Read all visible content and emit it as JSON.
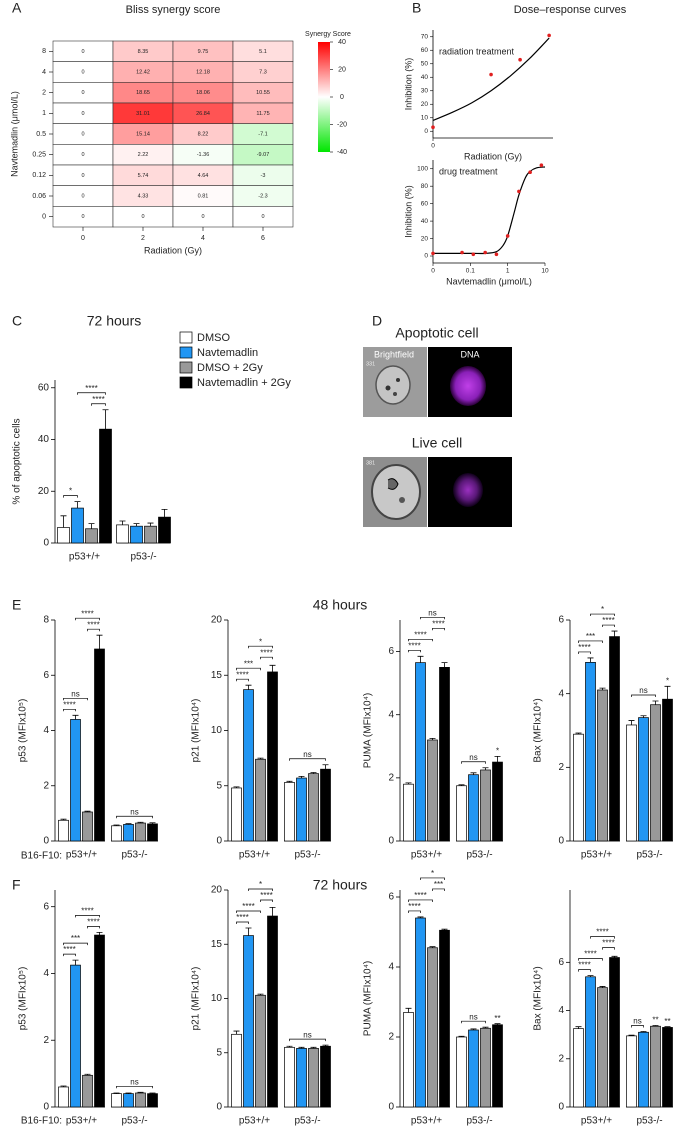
{
  "panel_labels": [
    "A",
    "B",
    "C",
    "D",
    "E",
    "F"
  ],
  "panel_titles": {
    "B": "Dose–response curves"
  },
  "panel_D": {
    "apoptotic_title": "Apoptotic cell",
    "live_title": "Live cell",
    "channels": [
      "Brightfield",
      "DNA"
    ],
    "image_ids": [
      "331",
      "381"
    ]
  },
  "sections": {
    "E": "48 hours",
    "F": "72 hours"
  },
  "strain_label": "B16-F10:",
  "chart_data": [
    {
      "type": "heatmap",
      "title": "Bliss synergy score",
      "xlabel": "Radiation (Gy)",
      "ylabel": "Navtemadlin (μmol/L)",
      "x_categories": [
        0,
        2,
        4,
        6
      ],
      "y_categories": [
        8,
        4,
        2,
        1,
        0.5,
        0.25,
        0.12,
        0.06,
        0
      ],
      "z": [
        [
          0,
          8.35,
          9.75,
          5.1
        ],
        [
          0,
          12.42,
          12.18,
          7.3
        ],
        [
          0,
          18.65,
          18.06,
          10.55
        ],
        [
          0,
          31.01,
          26.84,
          11.75
        ],
        [
          0,
          15.14,
          8.22,
          -7.1
        ],
        [
          0,
          2.22,
          -1.36,
          -9.07
        ],
        [
          0,
          5.74,
          4.64,
          -3
        ],
        [
          0,
          4.33,
          0.81,
          -2.3
        ],
        [
          0,
          0,
          0,
          0
        ]
      ],
      "colorbar_label": "Synergy Score",
      "zlim": [
        -40,
        40
      ],
      "zticks": [
        40,
        20,
        0,
        -20,
        -40
      ],
      "colormap": [
        "#00e600",
        "#ffffff",
        "#ff0000"
      ]
    },
    {
      "type": "scatter",
      "label": "radiation treatment",
      "xlabel": "Radiation (Gy)",
      "ylabel": "Inhibition (%)",
      "xscale": "linear",
      "x": [
        0,
        3,
        4.5,
        6
      ],
      "values": [
        3,
        42,
        53,
        71
      ],
      "color": "#e02020",
      "fit": {
        "x": [
          0,
          1,
          2,
          3,
          4,
          5,
          6
        ],
        "values": [
          8,
          14,
          21,
          30,
          41,
          54,
          69
        ],
        "color": "#000000"
      },
      "xlim": [
        0,
        6.2
      ],
      "xticks": [
        0
      ],
      "ylim": [
        -5,
        75
      ],
      "yticks": [
        0,
        10,
        20,
        30,
        40,
        50,
        60,
        70
      ]
    },
    {
      "type": "scatter",
      "label": "drug treatment",
      "xlabel": "Navtemadlin (μmol/L)",
      "ylabel": "Inhibition (%)",
      "xscale": "log",
      "x": [
        0,
        0.06,
        0.12,
        0.25,
        0.5,
        1,
        2,
        4,
        8
      ],
      "values": [
        3,
        4,
        2,
        4,
        2,
        23,
        74,
        96,
        104
      ],
      "color": "#e02020",
      "fit": {
        "x": [
          0,
          0.06,
          0.12,
          0.25,
          0.5,
          0.75,
          1,
          1.5,
          2,
          3,
          4,
          6,
          10
        ],
        "values": [
          3,
          3,
          3,
          3,
          5,
          12,
          23,
          50,
          70,
          90,
          97,
          101,
          102
        ],
        "color": "#000000"
      },
      "xlim": [
        0,
        10
      ],
      "xticks": [
        0,
        0.1,
        1,
        10
      ],
      "ylim": [
        -8,
        110
      ],
      "yticks": [
        0,
        20,
        40,
        60,
        80,
        100
      ]
    },
    {
      "type": "bar",
      "title": "72 hours",
      "ylabel": "% of apoptotic cells",
      "categories": [
        "p53+/+",
        "p53-/-"
      ],
      "ylim": [
        0,
        63
      ],
      "yticks": [
        0,
        20,
        40,
        60
      ],
      "series": [
        {
          "name": "DMSO",
          "color": "#ffffff",
          "values": [
            6,
            7
          ],
          "errors": [
            4.5,
            1.5
          ]
        },
        {
          "name": "Navtemadlin",
          "color": "#2196f3",
          "values": [
            13.5,
            6.5
          ],
          "errors": [
            2.5,
            1
          ]
        },
        {
          "name": "DMSO + 2Gy",
          "color": "#999999",
          "values": [
            5.5,
            6.5
          ],
          "errors": [
            2,
            1.2
          ]
        },
        {
          "name": "Navtemadlin + 2Gy",
          "color": "#000000",
          "values": [
            44,
            10
          ],
          "errors": [
            7.5,
            3
          ]
        }
      ],
      "annotations": [
        {
          "label": "*",
          "group": 0,
          "series": [
            0,
            1
          ]
        },
        {
          "label": "****",
          "group": 0,
          "series": [
            2,
            3
          ]
        },
        {
          "label": "****",
          "group": 0,
          "series": [
            1,
            3
          ]
        }
      ]
    },
    {
      "type": "bar",
      "ylabel": "p53 (MFIx10⁵)",
      "categories": [
        "p53+/+",
        "p53-/-"
      ],
      "ylim": [
        0,
        8
      ],
      "yticks": [
        0,
        2,
        4,
        6,
        8
      ],
      "series": [
        {
          "color": "#ffffff",
          "values": [
            0.75,
            0.55
          ],
          "errors": [
            0.04,
            0.03
          ]
        },
        {
          "color": "#2196f3",
          "values": [
            4.4,
            0.6
          ],
          "errors": [
            0.15,
            0.03
          ]
        },
        {
          "color": "#999999",
          "values": [
            1.05,
            0.65
          ],
          "errors": [
            0.03,
            0.03
          ]
        },
        {
          "color": "#000000",
          "values": [
            6.95,
            0.62
          ],
          "errors": [
            0.5,
            0.04
          ]
        }
      ],
      "annotations": [
        {
          "label": "****",
          "group": 0,
          "series": [
            0,
            1
          ]
        },
        {
          "label": "ns",
          "group": 0,
          "series": [
            0,
            2
          ]
        },
        {
          "label": "****",
          "group": 0,
          "series": [
            2,
            3
          ]
        },
        {
          "label": "****",
          "group": 0,
          "series": [
            1,
            3
          ]
        },
        {
          "label": "ns",
          "group": 1,
          "series": [
            0,
            3
          ]
        }
      ]
    },
    {
      "type": "bar",
      "ylabel": "p21 (MFIx10⁴)",
      "categories": [
        "p53+/+",
        "p53-/-"
      ],
      "ylim": [
        0,
        20
      ],
      "yticks": [
        0,
        5,
        10,
        15,
        20
      ],
      "series": [
        {
          "color": "#ffffff",
          "values": [
            4.8,
            5.3
          ],
          "errors": [
            0.1,
            0.1
          ]
        },
        {
          "color": "#2196f3",
          "values": [
            13.7,
            5.7
          ],
          "errors": [
            0.4,
            0.15
          ]
        },
        {
          "color": "#999999",
          "values": [
            7.4,
            6.1
          ],
          "errors": [
            0.1,
            0.1
          ]
        },
        {
          "color": "#000000",
          "values": [
            15.3,
            6.5
          ],
          "errors": [
            0.6,
            0.4
          ]
        }
      ],
      "annotations": [
        {
          "label": "****",
          "group": 0,
          "series": [
            0,
            1
          ]
        },
        {
          "label": "***",
          "group": 0,
          "series": [
            0,
            2
          ]
        },
        {
          "label": "****",
          "group": 0,
          "series": [
            2,
            3
          ]
        },
        {
          "label": "*",
          "group": 0,
          "series": [
            1,
            3
          ]
        },
        {
          "label": "ns",
          "group": 1,
          "series": [
            0,
            3
          ]
        }
      ]
    },
    {
      "type": "bar",
      "ylabel": "PUMA (MFIx10⁴)",
      "categories": [
        "p53+/+",
        "p53-/-"
      ],
      "ylim": [
        0,
        7
      ],
      "yticks": [
        0,
        2,
        4,
        6
      ],
      "series": [
        {
          "color": "#ffffff",
          "values": [
            1.8,
            1.75
          ],
          "errors": [
            0.04,
            0.03
          ]
        },
        {
          "color": "#2196f3",
          "values": [
            5.65,
            2.1
          ],
          "errors": [
            0.2,
            0.06
          ]
        },
        {
          "color": "#999999",
          "values": [
            3.2,
            2.25
          ],
          "errors": [
            0.05,
            0.07
          ]
        },
        {
          "color": "#000000",
          "values": [
            5.5,
            2.5
          ],
          "errors": [
            0.15,
            0.18
          ]
        }
      ],
      "annotations": [
        {
          "label": "****",
          "group": 0,
          "series": [
            0,
            1
          ]
        },
        {
          "label": "****",
          "group": 0,
          "series": [
            0,
            2
          ]
        },
        {
          "label": "****",
          "group": 0,
          "series": [
            2,
            3
          ]
        },
        {
          "label": "ns",
          "group": 0,
          "series": [
            1,
            3
          ]
        },
        {
          "label": "ns",
          "group": 1,
          "series": [
            0,
            2
          ]
        },
        {
          "label": "*",
          "group": 1,
          "series": [
            3,
            3
          ]
        }
      ]
    },
    {
      "type": "bar",
      "ylabel": "Bax (MFIx10⁴)",
      "categories": [
        "p53+/+",
        "p53-/-"
      ],
      "ylim": [
        0,
        6
      ],
      "yticks": [
        0,
        2,
        4,
        6
      ],
      "series": [
        {
          "color": "#ffffff",
          "values": [
            2.9,
            3.15
          ],
          "errors": [
            0.03,
            0.12
          ]
        },
        {
          "color": "#2196f3",
          "values": [
            4.85,
            3.35
          ],
          "errors": [
            0.12,
            0.05
          ]
        },
        {
          "color": "#999999",
          "values": [
            4.1,
            3.7
          ],
          "errors": [
            0.05,
            0.1
          ]
        },
        {
          "color": "#000000",
          "values": [
            5.55,
            3.85
          ],
          "errors": [
            0.15,
            0.35
          ]
        }
      ],
      "annotations": [
        {
          "label": "****",
          "group": 0,
          "series": [
            0,
            1
          ]
        },
        {
          "label": "***",
          "group": 0,
          "series": [
            0,
            2
          ]
        },
        {
          "label": "****",
          "group": 0,
          "series": [
            2,
            3
          ]
        },
        {
          "label": "*",
          "group": 0,
          "series": [
            1,
            3
          ]
        },
        {
          "label": "ns",
          "group": 1,
          "series": [
            0,
            2
          ]
        },
        {
          "label": "*",
          "group": 1,
          "series": [
            3,
            3
          ]
        }
      ]
    },
    {
      "type": "bar",
      "ylabel": "p53 (MFIx10⁵)",
      "categories": [
        "p53+/+",
        "p53-/-"
      ],
      "ylim": [
        0,
        6.5
      ],
      "yticks": [
        0,
        2,
        4,
        6
      ],
      "series": [
        {
          "color": "#ffffff",
          "values": [
            0.6,
            0.4
          ],
          "errors": [
            0.03,
            0.02
          ]
        },
        {
          "color": "#2196f3",
          "values": [
            4.25,
            0.4
          ],
          "errors": [
            0.15,
            0.02
          ]
        },
        {
          "color": "#999999",
          "values": [
            0.95,
            0.42
          ],
          "errors": [
            0.03,
            0.02
          ]
        },
        {
          "color": "#000000",
          "values": [
            5.15,
            0.4
          ],
          "errors": [
            0.08,
            0.02
          ]
        }
      ],
      "annotations": [
        {
          "label": "****",
          "group": 0,
          "series": [
            0,
            1
          ]
        },
        {
          "label": "***",
          "group": 0,
          "series": [
            0,
            2
          ]
        },
        {
          "label": "****",
          "group": 0,
          "series": [
            2,
            3
          ]
        },
        {
          "label": "****",
          "group": 0,
          "series": [
            1,
            3
          ]
        },
        {
          "label": "ns",
          "group": 1,
          "series": [
            0,
            3
          ]
        }
      ]
    },
    {
      "type": "bar",
      "ylabel": "p21 (MFIx10⁴)",
      "categories": [
        "p53+/+",
        "p53-/-"
      ],
      "ylim": [
        0,
        20
      ],
      "yticks": [
        0,
        5,
        10,
        15,
        20
      ],
      "series": [
        {
          "color": "#ffffff",
          "values": [
            6.7,
            5.5
          ],
          "errors": [
            0.3,
            0.1
          ]
        },
        {
          "color": "#2196f3",
          "values": [
            15.8,
            5.4
          ],
          "errors": [
            0.7,
            0.1
          ]
        },
        {
          "color": "#999999",
          "values": [
            10.3,
            5.4
          ],
          "errors": [
            0.1,
            0.1
          ]
        },
        {
          "color": "#000000",
          "values": [
            17.6,
            5.6
          ],
          "errors": [
            0.8,
            0.1
          ]
        }
      ],
      "annotations": [
        {
          "label": "****",
          "group": 0,
          "series": [
            0,
            1
          ]
        },
        {
          "label": "****",
          "group": 0,
          "series": [
            0,
            2
          ]
        },
        {
          "label": "****",
          "group": 0,
          "series": [
            2,
            3
          ]
        },
        {
          "label": "*",
          "group": 0,
          "series": [
            1,
            3
          ]
        },
        {
          "label": "ns",
          "group": 1,
          "series": [
            0,
            3
          ]
        }
      ]
    },
    {
      "type": "bar",
      "ylabel": "PUMA (MFIx10⁴)",
      "categories": [
        "p53+/+",
        "p53-/-"
      ],
      "ylim": [
        0,
        6.2
      ],
      "yticks": [
        0,
        2,
        4,
        6
      ],
      "series": [
        {
          "color": "#ffffff",
          "values": [
            2.7,
            2.0
          ],
          "errors": [
            0.12,
            0.02
          ]
        },
        {
          "color": "#2196f3",
          "values": [
            5.4,
            2.2
          ],
          "errors": [
            0.03,
            0.03
          ]
        },
        {
          "color": "#999999",
          "values": [
            4.55,
            2.25
          ],
          "errors": [
            0.03,
            0.03
          ]
        },
        {
          "color": "#000000",
          "values": [
            5.05,
            2.35
          ],
          "errors": [
            0.03,
            0.03
          ]
        }
      ],
      "annotations": [
        {
          "label": "****",
          "group": 0,
          "series": [
            0,
            1
          ]
        },
        {
          "label": "****",
          "group": 0,
          "series": [
            0,
            2
          ]
        },
        {
          "label": "***",
          "group": 0,
          "series": [
            2,
            3
          ]
        },
        {
          "label": "*",
          "group": 0,
          "series": [
            1,
            3
          ]
        },
        {
          "label": "ns",
          "group": 1,
          "series": [
            0,
            2
          ]
        },
        {
          "label": "**",
          "group": 1,
          "series": [
            3,
            3
          ]
        }
      ]
    },
    {
      "type": "bar",
      "ylabel": "Bax (MFIx10⁴)",
      "categories": [
        "p53+/+",
        "p53-/-"
      ],
      "ylim": [
        0,
        9
      ],
      "yticks": [
        0,
        2,
        4,
        6
      ],
      "series": [
        {
          "color": "#ffffff",
          "values": [
            3.25,
            2.95
          ],
          "errors": [
            0.08,
            0.03
          ]
        },
        {
          "color": "#2196f3",
          "values": [
            5.4,
            3.1
          ],
          "errors": [
            0.05,
            0.03
          ]
        },
        {
          "color": "#999999",
          "values": [
            4.95,
            3.35
          ],
          "errors": [
            0.05,
            0.03
          ]
        },
        {
          "color": "#000000",
          "values": [
            6.2,
            3.3
          ],
          "errors": [
            0.05,
            0.03
          ]
        }
      ],
      "annotations": [
        {
          "label": "****",
          "group": 0,
          "series": [
            0,
            1
          ]
        },
        {
          "label": "****",
          "group": 0,
          "series": [
            0,
            2
          ]
        },
        {
          "label": "****",
          "group": 0,
          "series": [
            2,
            3
          ]
        },
        {
          "label": "****",
          "group": 0,
          "series": [
            1,
            3
          ]
        },
        {
          "label": "ns",
          "group": 1,
          "series": [
            0,
            1
          ]
        },
        {
          "label": "**",
          "group": 1,
          "series": [
            2,
            2
          ]
        },
        {
          "label": "**",
          "group": 1,
          "series": [
            3,
            3
          ]
        }
      ]
    }
  ]
}
